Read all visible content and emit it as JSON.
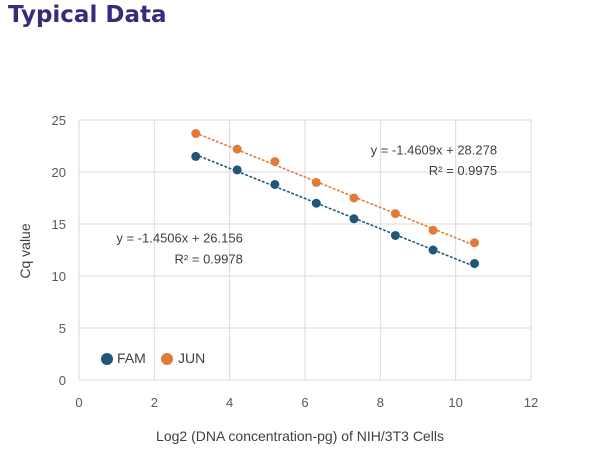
{
  "page": {
    "title": "Typical Data"
  },
  "colors": {
    "title": "#3b2a7a",
    "fam": "#1f5778",
    "jun": "#e07b39",
    "grid": "#d9d9d9",
    "axis_text": "#595959",
    "label_text": "#404040"
  },
  "chart_data": {
    "type": "scatter",
    "title": "",
    "xlabel": "Log2 (DNA concentration-pg) of NIH/3T3 Cells",
    "ylabel": "Cq value",
    "xlim": [
      0,
      12
    ],
    "ylim": [
      0,
      25
    ],
    "xticks": [
      0,
      2,
      4,
      6,
      8,
      10,
      12
    ],
    "yticks": [
      0,
      5,
      10,
      15,
      20,
      25
    ],
    "grid": true,
    "legend_position": "bottom-left",
    "series": [
      {
        "name": "FAM",
        "color": "#1f5778",
        "points": [
          {
            "x": 3.1,
            "y": 21.5
          },
          {
            "x": 4.2,
            "y": 20.2
          },
          {
            "x": 5.2,
            "y": 18.8
          },
          {
            "x": 6.3,
            "y": 17.0
          },
          {
            "x": 7.3,
            "y": 15.5
          },
          {
            "x": 8.4,
            "y": 13.9
          },
          {
            "x": 9.4,
            "y": 12.5
          },
          {
            "x": 10.5,
            "y": 11.2
          }
        ],
        "trendline": {
          "slope": -1.4506,
          "intercept": 26.156
        },
        "equation": "y = -1.4506x + 26.156",
        "r_squared": "R² = 0.9978"
      },
      {
        "name": "JUN",
        "color": "#e07b39",
        "points": [
          {
            "x": 3.1,
            "y": 23.7
          },
          {
            "x": 4.2,
            "y": 22.2
          },
          {
            "x": 5.2,
            "y": 21.0
          },
          {
            "x": 6.3,
            "y": 19.0
          },
          {
            "x": 7.3,
            "y": 17.5
          },
          {
            "x": 8.4,
            "y": 16.0
          },
          {
            "x": 9.4,
            "y": 14.4
          },
          {
            "x": 10.5,
            "y": 13.2
          }
        ],
        "trendline": {
          "slope": -1.4609,
          "intercept": 28.278
        },
        "equation": "y = -1.4609x + 28.278",
        "r_squared": "R² = 0.9975"
      }
    ]
  }
}
